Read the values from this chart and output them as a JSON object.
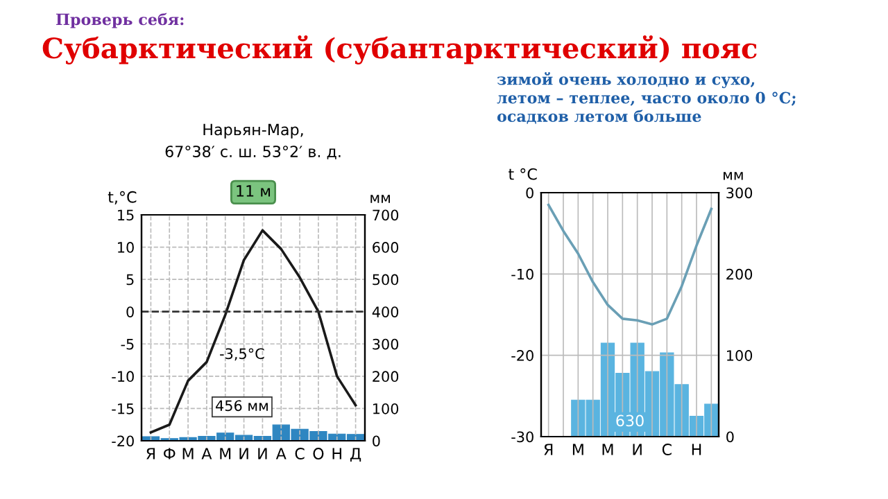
{
  "chart_data": [
    {
      "type": "bar",
      "title": "Нарьян-Мар,\n67°38′ с. ш. 53°2′ в. д.",
      "ylabel": "t,°C",
      "y2label": "мм",
      "annotations": [
        "Проверь себя:",
        "Субарктический (субантарктический) пояс",
        "11 м",
        "-3,5°C",
        "456 мм"
      ],
      "categories": [
        "Я",
        "Ф",
        "М",
        "А",
        "М",
        "И",
        "И",
        "А",
        "С",
        "О",
        "Н",
        "Д"
      ],
      "series": [
        {
          "axis": "y2",
          "color": "#2e86c1",
          "values": [
            13,
            7,
            10,
            14,
            24,
            17,
            14,
            49,
            36,
            29,
            21,
            20
          ]
        },
        {
          "type": "line",
          "axis": "y",
          "color": "#1a1a1a",
          "values": [
            -18.7,
            -17.5,
            -10.7,
            -7.8,
            -0.5,
            8,
            12.6,
            9.7,
            5.3,
            0,
            -10,
            -14.5
          ]
        }
      ],
      "ylim": [
        -20,
        15
      ],
      "yticks": [
        -20,
        -15,
        -10,
        -5,
        0,
        5,
        10,
        15
      ],
      "y2lim": [
        0,
        700
      ],
      "y2ticks": [
        0,
        100,
        200,
        300,
        400,
        500,
        600,
        700
      ],
      "ref_lines": [
        {
          "axis": "y",
          "value": 0,
          "label": null,
          "line_style": "dashed",
          "color": "#333333"
        }
      ],
      "grid": true,
      "line_style": "solid",
      "marker": "none",
      "legend": false
    },
    {
      "type": "bar",
      "ylabel": "t °C",
      "y2label": "мм",
      "annotations": [
        "зимой очень холодно и сухо,\nлетом – теплее, часто около 0 °C;\nосадков летом больше",
        "630"
      ],
      "categories": [
        "Я",
        null,
        "М",
        null,
        "М",
        null,
        "И",
        null,
        "С",
        null,
        "Н",
        null
      ],
      "series": [
        {
          "axis": "y2",
          "color": "#5ab4e0",
          "values": [
            null,
            null,
            45,
            45,
            115,
            78,
            115,
            80,
            103,
            64,
            25,
            40
          ]
        },
        {
          "type": "line",
          "axis": "y",
          "color": "#6a9fb5",
          "values": [
            -1.5,
            -4.7,
            -7.5,
            -11,
            -13.8,
            -15.5,
            -15.7,
            -16.2,
            -15.5,
            -11.5,
            -6.5,
            -2
          ]
        }
      ],
      "ylim": [
        -30,
        0
      ],
      "yticks": [
        -30,
        -20,
        -10,
        0
      ],
      "y2lim": [
        0,
        300
      ],
      "y2ticks": [
        0,
        100,
        200,
        300
      ],
      "grid": true,
      "line_style": "solid",
      "marker": "none",
      "legend": false
    }
  ]
}
